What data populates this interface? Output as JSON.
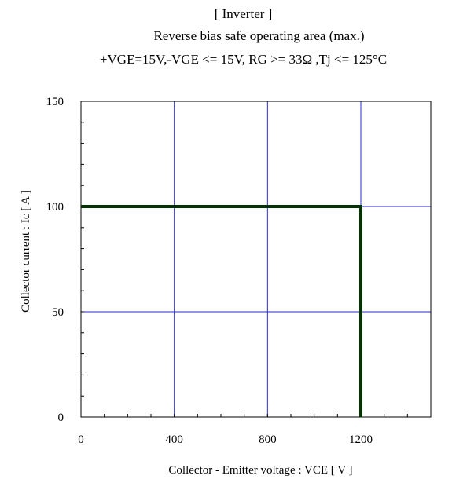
{
  "chart_data": {
    "type": "line",
    "title": "[ Inverter ]",
    "subtitle": "Reverse bias safe operating area (max.)",
    "conditions": "+VGE=15V,-VGE <= 15V, RG >= 33Ω ,Tj <= 125°C",
    "xlabel": "Collector - Emitter voltage  :  VCE  [ V ]",
    "ylabel": "Collector current  : Ic  [ A ]",
    "xlim": [
      0,
      1500
    ],
    "ylim": [
      0,
      150
    ],
    "x_ticks": [
      0,
      400,
      800,
      1200
    ],
    "y_ticks": [
      0,
      50,
      100,
      150
    ],
    "x_grid": [
      400,
      800,
      1200
    ],
    "y_grid": [
      50,
      100
    ],
    "x_minor_step": 100,
    "y_minor_step": 10,
    "grid": true,
    "grid_color": "#2a2ad0",
    "series": [
      {
        "color": "#003300",
        "x": [
          0,
          1200,
          1200
        ],
        "y": [
          100,
          100,
          0
        ]
      }
    ]
  }
}
